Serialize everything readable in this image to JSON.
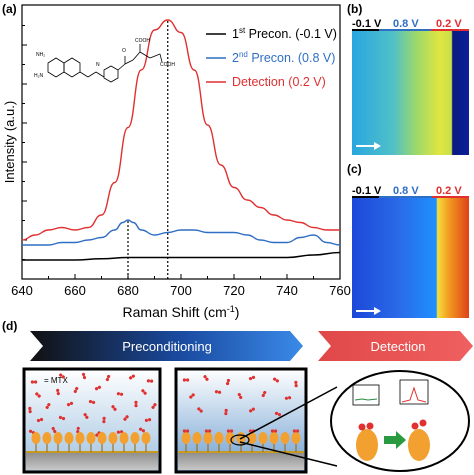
{
  "panels": {
    "a": "(a)",
    "b": "(b)",
    "c": "(c)",
    "d": "(d)"
  },
  "chart_data": {
    "type": "line",
    "xlabel": "Raman Shift (cm",
    "xlabel_sup": "-1",
    "xlabel_end": ")",
    "ylabel": "Intensity (a.u.)",
    "xlim": [
      640,
      760
    ],
    "xticks": [
      "640",
      "660",
      "680",
      "700",
      "720",
      "740",
      "760"
    ],
    "grid": false,
    "legend_position": "top-right",
    "legend": [
      {
        "pre": "1",
        "sup": "st",
        "post": " Precon. (-0.1 V)",
        "color": "#000000"
      },
      {
        "pre": "2",
        "sup": "nd",
        "post": " Precon. (0.8 V)",
        "color": "#2e6fc4"
      },
      {
        "pre": "",
        "sup": "",
        "post": "Detection (0.2 V)",
        "color": "#e03030"
      }
    ],
    "reference_lines": [
      680,
      695
    ],
    "series": [
      {
        "name": "1st Precon. (-0.1 V)",
        "color": "#000000",
        "x": [
          640,
          650,
          660,
          670,
          680,
          690,
          700,
          710,
          720,
          730,
          740,
          750,
          760
        ],
        "y": [
          0.04,
          0.04,
          0.04,
          0.045,
          0.05,
          0.05,
          0.05,
          0.05,
          0.05,
          0.05,
          0.05,
          0.06,
          0.07
        ]
      },
      {
        "name": "2nd Precon. (0.8 V)",
        "color": "#2e6fc4",
        "x": [
          640,
          645,
          650,
          655,
          660,
          665,
          670,
          675,
          678,
          680,
          682,
          685,
          690,
          695,
          700,
          705,
          710,
          715,
          720,
          725,
          730,
          735,
          740,
          745,
          750,
          755,
          760
        ],
        "y": [
          0.1,
          0.1,
          0.1,
          0.11,
          0.11,
          0.12,
          0.13,
          0.16,
          0.19,
          0.2,
          0.19,
          0.16,
          0.14,
          0.15,
          0.16,
          0.16,
          0.15,
          0.15,
          0.15,
          0.14,
          0.12,
          0.11,
          0.11,
          0.13,
          0.14,
          0.11,
          0.1
        ]
      },
      {
        "name": "Detection (0.2 V)",
        "color": "#e03030",
        "x": [
          640,
          645,
          650,
          655,
          660,
          665,
          670,
          675,
          680,
          685,
          690,
          695,
          700,
          705,
          710,
          715,
          720,
          725,
          730,
          735,
          740,
          745,
          750,
          755,
          760
        ],
        "y": [
          0.12,
          0.14,
          0.16,
          0.17,
          0.16,
          0.17,
          0.22,
          0.35,
          0.57,
          0.8,
          0.96,
          1.0,
          0.95,
          0.8,
          0.58,
          0.42,
          0.33,
          0.28,
          0.25,
          0.22,
          0.2,
          0.19,
          0.17,
          0.16,
          0.16
        ]
      }
    ]
  },
  "heatmap_b": {
    "labels": [
      {
        "text": "-0.1 V",
        "color": "#000000"
      },
      {
        "text": "0.8 V",
        "color": "#2e6fc4"
      },
      {
        "text": "0.2 V",
        "color": "#e03030"
      }
    ]
  },
  "heatmap_c": {
    "labels": [
      {
        "text": "-0.1 V",
        "color": "#000000"
      },
      {
        "text": "0.8 V",
        "color": "#2e6fc4"
      },
      {
        "text": "0.2 V",
        "color": "#e03030"
      }
    ]
  },
  "scheme": {
    "preconditioning": "Preconditioning",
    "detection": "Detection",
    "legend_mtx": "= MTX"
  }
}
